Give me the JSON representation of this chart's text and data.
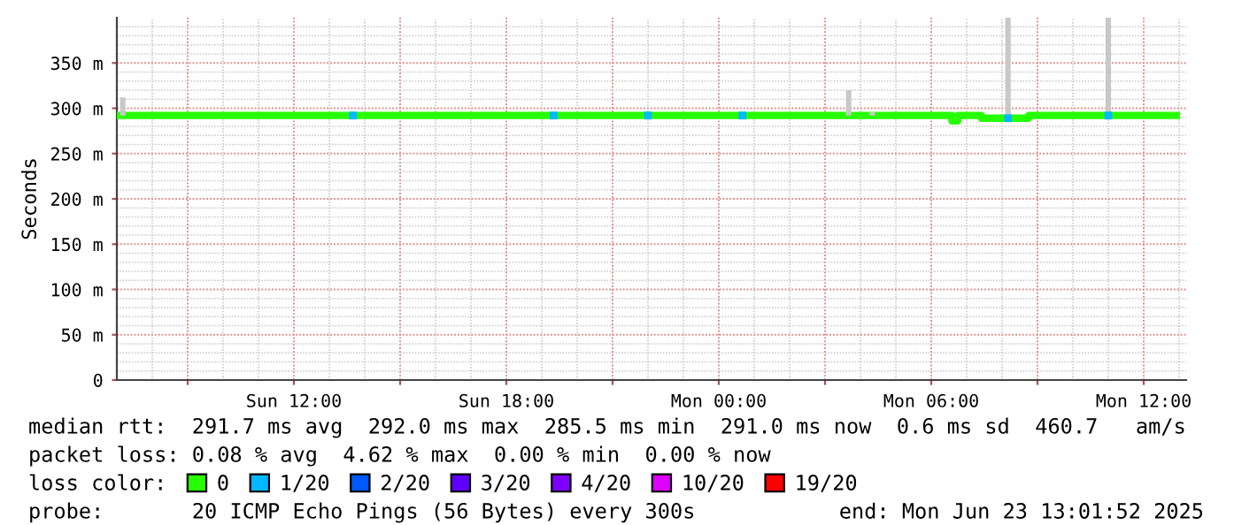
{
  "chart_data": {
    "type": "line",
    "ylabel": "Seconds",
    "x": [
      "2025-06-22T07:00",
      "2025-06-22T07:10",
      "2025-06-22T07:20",
      "2025-06-23T03:30",
      "2025-06-23T03:40",
      "2025-06-23T03:50",
      "2025-06-23T04:10",
      "2025-06-23T04:20",
      "2025-06-23T04:30",
      "2025-06-23T06:30",
      "2025-06-23T06:40",
      "2025-06-23T06:50",
      "2025-06-23T08:00",
      "2025-06-23T08:10",
      "2025-06-23T08:20",
      "2025-06-23T08:40",
      "2025-06-23T08:50",
      "2025-06-23T10:50",
      "2025-06-23T11:00",
      "2025-06-23T11:10",
      "2025-06-23T12:55"
    ],
    "series": [
      {
        "name": "0",
        "color": "#26ff00",
        "marker": "none",
        "values": [
          292,
          292,
          292,
          292,
          292,
          292,
          292,
          292,
          292,
          292,
          286,
          292,
          289,
          289,
          289,
          289,
          292,
          292,
          292,
          292,
          292
        ],
        "errors": [
          null,
          [
            292,
            312
          ],
          null,
          null,
          [
            292,
            320
          ],
          null,
          null,
          [
            292,
            296
          ],
          null,
          null,
          null,
          null,
          null,
          [
            289,
            400
          ],
          null,
          null,
          null,
          null,
          [
            292,
            400
          ],
          null,
          null
        ]
      },
      {
        "name": "1/20",
        "color": "#00b8ff",
        "type": "scatter",
        "marker": "square",
        "x": [
          "2025-06-22T13:40",
          "2025-06-22T19:20",
          "2025-06-22T22:00",
          "2025-06-23T00:40",
          "2025-06-23T08:10",
          "2025-06-23T11:00"
        ],
        "values": [
          292,
          292,
          292,
          292,
          289,
          292
        ]
      },
      {
        "name": "2/20",
        "color": "#0059ff",
        "type": "scatter",
        "marker": "square",
        "values": [
          null,
          null,
          null,
          null,
          null,
          null,
          null,
          null,
          null,
          null,
          null,
          null,
          null,
          null,
          null,
          null,
          null,
          null,
          null,
          null,
          null
        ]
      },
      {
        "name": "3/20",
        "color": "#5e00ff",
        "type": "scatter",
        "marker": "square",
        "values": [
          null,
          null,
          null,
          null,
          null,
          null,
          null,
          null,
          null,
          null,
          null,
          null,
          null,
          null,
          null,
          null,
          null,
          null,
          null,
          null,
          null
        ]
      },
      {
        "name": "4/20",
        "color": "#7e00ff",
        "type": "scatter",
        "marker": "square",
        "values": [
          null,
          null,
          null,
          null,
          null,
          null,
          null,
          null,
          null,
          null,
          null,
          null,
          null,
          null,
          null,
          null,
          null,
          null,
          null,
          null,
          null
        ]
      },
      {
        "name": "10/20",
        "color": "#dd00ff",
        "type": "scatter",
        "marker": "square",
        "values": [
          null,
          null,
          null,
          null,
          null,
          null,
          null,
          null,
          null,
          null,
          null,
          null,
          null,
          null,
          null,
          null,
          null,
          null,
          null,
          null,
          null
        ]
      },
      {
        "name": "19/20",
        "color": "#ff0000",
        "type": "scatter",
        "marker": "square",
        "values": [
          null,
          null,
          null,
          null,
          null,
          null,
          null,
          null,
          null,
          null,
          null,
          null,
          null,
          null,
          null,
          null,
          null,
          null,
          null,
          null,
          null
        ]
      }
    ],
    "xlim": [
      "2025-06-22T07:00",
      "2025-06-23T13:12"
    ],
    "xticks": [
      {
        "value": "2025-06-22T09:00",
        "label": null
      },
      {
        "value": "2025-06-22T12:00",
        "label": "Sun 12:00"
      },
      {
        "value": "2025-06-22T15:00",
        "label": null
      },
      {
        "value": "2025-06-22T18:00",
        "label": "Sun 18:00"
      },
      {
        "value": "2025-06-22T21:00",
        "label": null
      },
      {
        "value": "2025-06-23T00:00",
        "label": "Mon 00:00"
      },
      {
        "value": "2025-06-23T03:00",
        "label": null
      },
      {
        "value": "2025-06-23T06:00",
        "label": "Mon 06:00"
      },
      {
        "value": "2025-06-23T09:00",
        "label": null
      },
      {
        "value": "2025-06-23T12:00",
        "label": "Mon 12:00"
      }
    ],
    "ylim": [
      0,
      400
    ],
    "yticks": [
      0,
      {
        "value": 50,
        "label": "50 m"
      },
      {
        "value": 100,
        "label": "100 m"
      },
      {
        "value": 150,
        "label": "150 m"
      },
      {
        "value": 200,
        "label": "200 m"
      },
      {
        "value": 250,
        "label": "250 m"
      },
      {
        "value": 300,
        "label": "300 m"
      },
      {
        "value": 350,
        "label": "350 m"
      }
    ],
    "grid": true,
    "legend": "bottom",
    "legend_title": "loss color:",
    "annotations": [
      "median rtt:  291.7 ms avg  292.0 ms max  285.5 ms min  291.0 ms now  0.6 ms sd  460.7   am/s",
      "packet loss: 0.08 % avg  4.62 % max  0.00 % min  0.00 % now",
      "probe:       20 ICMP Echo Pings (56 Bytes) every 300s",
      "end: Mon Jun 23 13:01:52 2025"
    ]
  }
}
